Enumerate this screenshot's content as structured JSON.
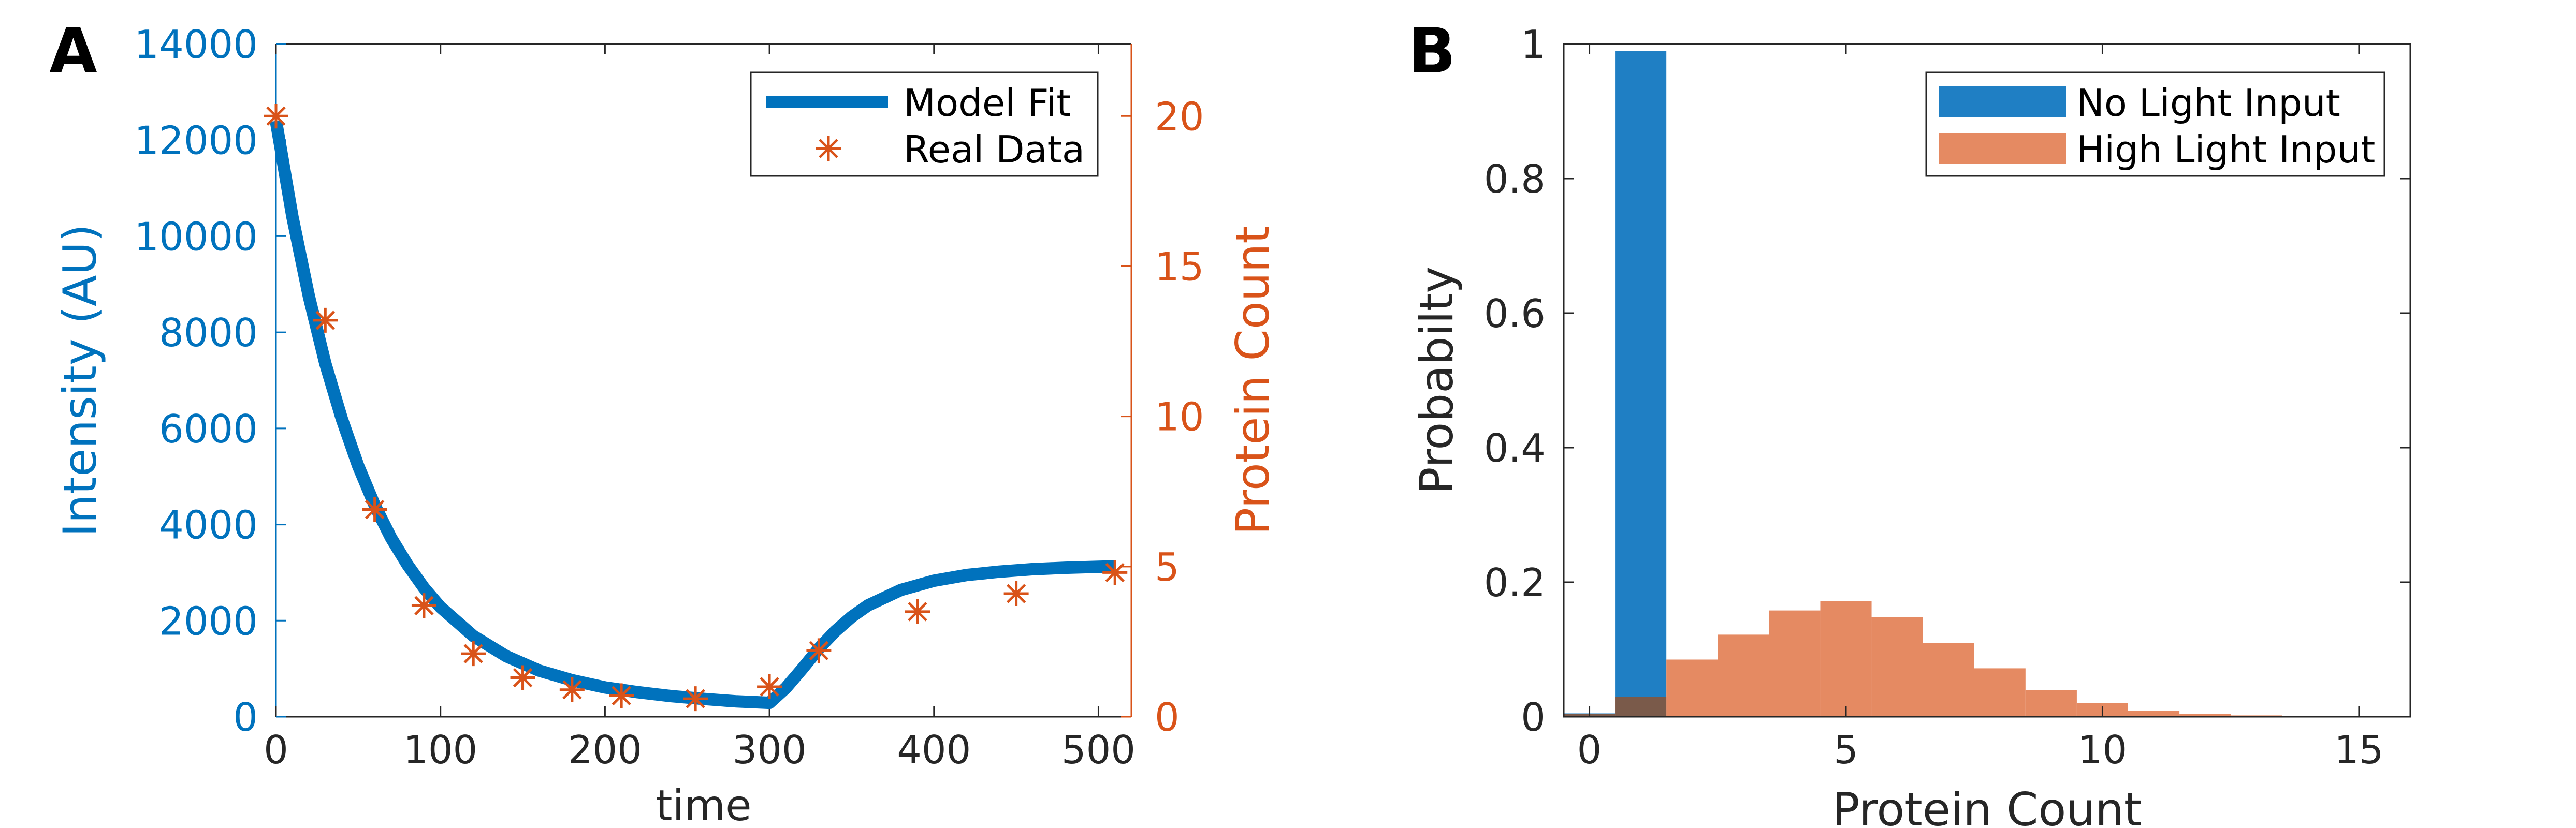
{
  "panels": {
    "a": {
      "letter": "A"
    },
    "b": {
      "letter": "B"
    }
  },
  "colors": {
    "blue": "#0072BD",
    "orange": "#D95319",
    "hist_blue": "#1F7FC4",
    "hist_orange": "#E58A62",
    "overlap": "#7A5A4A",
    "axis": "#262626"
  },
  "chart_data": [
    {
      "type": "line",
      "title": "",
      "xlabel": "time",
      "ylabel": "Intensity (AU)",
      "y2label": "Protein Count",
      "xlim": [
        0,
        520
      ],
      "ylim": [
        0,
        14000
      ],
      "y2lim": [
        0,
        22.4
      ],
      "grid": false,
      "legend_position": "top-right",
      "x_ticks": [
        0,
        100,
        200,
        300,
        400,
        500
      ],
      "y_ticks": [
        0,
        2000,
        4000,
        6000,
        8000,
        10000,
        12000,
        14000
      ],
      "y2_ticks": [
        0,
        5,
        10,
        15,
        20
      ],
      "series": [
        {
          "name": "Model Fit",
          "axis": "left",
          "style": "line",
          "x": [
            0,
            10,
            20,
            30,
            40,
            50,
            60,
            70,
            80,
            90,
            100,
            120,
            140,
            160,
            180,
            200,
            220,
            240,
            260,
            280,
            300,
            310,
            320,
            330,
            340,
            350,
            360,
            380,
            400,
            420,
            440,
            460,
            480,
            500,
            510
          ],
          "y": [
            12400,
            10400,
            8750,
            7350,
            6200,
            5220,
            4400,
            3720,
            3160,
            2680,
            2280,
            1680,
            1260,
            960,
            760,
            610,
            510,
            430,
            370,
            320,
            290,
            600,
            1000,
            1420,
            1780,
            2080,
            2320,
            2640,
            2830,
            2950,
            3020,
            3070,
            3100,
            3120,
            3130
          ]
        },
        {
          "name": "Real Data",
          "axis": "right",
          "style": "marker-star",
          "x": [
            0,
            30,
            60,
            90,
            120,
            150,
            180,
            210,
            255,
            300,
            330,
            390,
            450,
            510
          ],
          "y": [
            20.0,
            13.2,
            6.9,
            3.7,
            2.1,
            1.3,
            0.9,
            0.7,
            0.6,
            1.0,
            2.2,
            3.5,
            4.1,
            4.8
          ]
        }
      ]
    },
    {
      "type": "bar",
      "title": "",
      "xlabel": "Protein Count",
      "ylabel": "Probabilty",
      "xlim": [
        -0.5,
        16
      ],
      "ylim": [
        0,
        1
      ],
      "grid": false,
      "legend_position": "top-right",
      "x_ticks": [
        0,
        5,
        10,
        15
      ],
      "y_ticks": [
        0,
        0.2,
        0.4,
        0.6,
        0.8,
        1
      ],
      "y_tick_labels": [
        "0",
        "0.2",
        "0.4",
        "0.6",
        "0.8",
        "1"
      ],
      "categories": [
        0,
        1,
        2,
        3,
        4,
        5,
        6,
        7,
        8,
        9,
        10,
        11,
        12,
        13,
        14,
        15
      ],
      "series": [
        {
          "name": "No Light Input",
          "values": [
            0.005,
            0.99,
            0,
            0,
            0,
            0,
            0,
            0,
            0,
            0,
            0,
            0,
            0,
            0,
            0,
            0
          ]
        },
        {
          "name": "High Light Input",
          "values": [
            0.004,
            0.03,
            0.085,
            0.122,
            0.158,
            0.172,
            0.148,
            0.11,
            0.072,
            0.04,
            0.02,
            0.009,
            0.004,
            0.002,
            0.001,
            0
          ]
        }
      ]
    }
  ]
}
